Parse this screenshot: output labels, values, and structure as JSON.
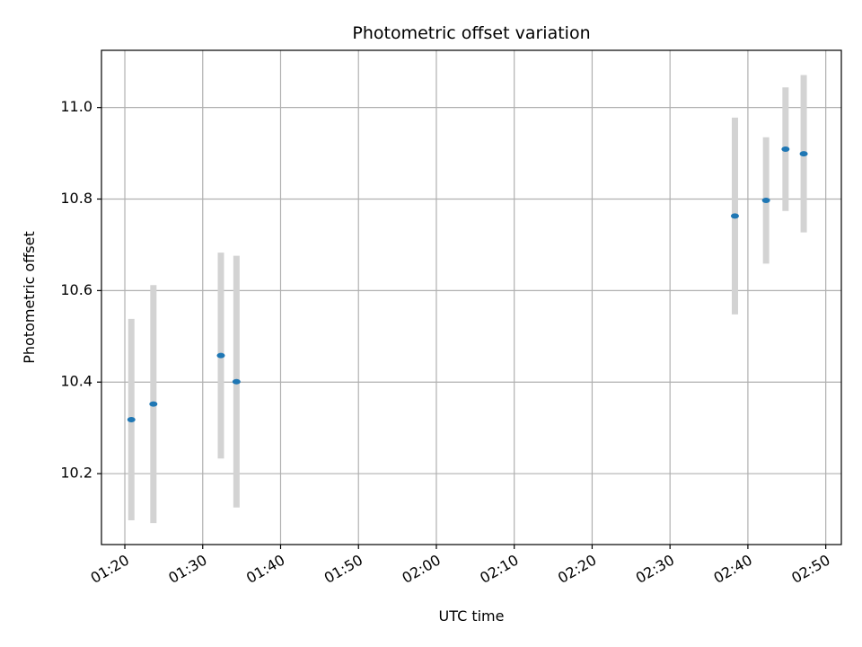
{
  "chart_data": {
    "type": "scatter",
    "title": "Photometric offset variation",
    "xlabel": "UTC time",
    "ylabel": "Photometric offset",
    "grid": true,
    "xlim": [
      "01:17",
      "02:52"
    ],
    "ylim": [
      10.045,
      11.125
    ],
    "x_ticks": [
      "01:20",
      "01:30",
      "01:40",
      "01:50",
      "02:00",
      "02:10",
      "02:20",
      "02:30",
      "02:40",
      "02:50"
    ],
    "y_ticks": [
      "10.2",
      "10.4",
      "10.6",
      "10.8",
      "11.0"
    ],
    "series": [
      {
        "points": [
          {
            "x": "01:20:50",
            "y": 10.318,
            "yerr": 0.22
          },
          {
            "x": "01:23:40",
            "y": 10.352,
            "yerr": 0.26
          },
          {
            "x": "01:32:20",
            "y": 10.458,
            "yerr": 0.225
          },
          {
            "x": "01:34:20",
            "y": 10.401,
            "yerr": 0.275
          },
          {
            "x": "02:38:20",
            "y": 10.763,
            "yerr": 0.215
          },
          {
            "x": "02:42:20",
            "y": 10.797,
            "yerr": 0.138
          },
          {
            "x": "02:44:50",
            "y": 10.909,
            "yerr": 0.135
          },
          {
            "x": "02:47:10",
            "y": 10.899,
            "yerr": 0.172
          }
        ]
      }
    ],
    "colors": {
      "marker": "#1f77b4",
      "errorbar": "#d3d3d3",
      "grid": "#b0b0b0",
      "axes": "#000000"
    }
  }
}
